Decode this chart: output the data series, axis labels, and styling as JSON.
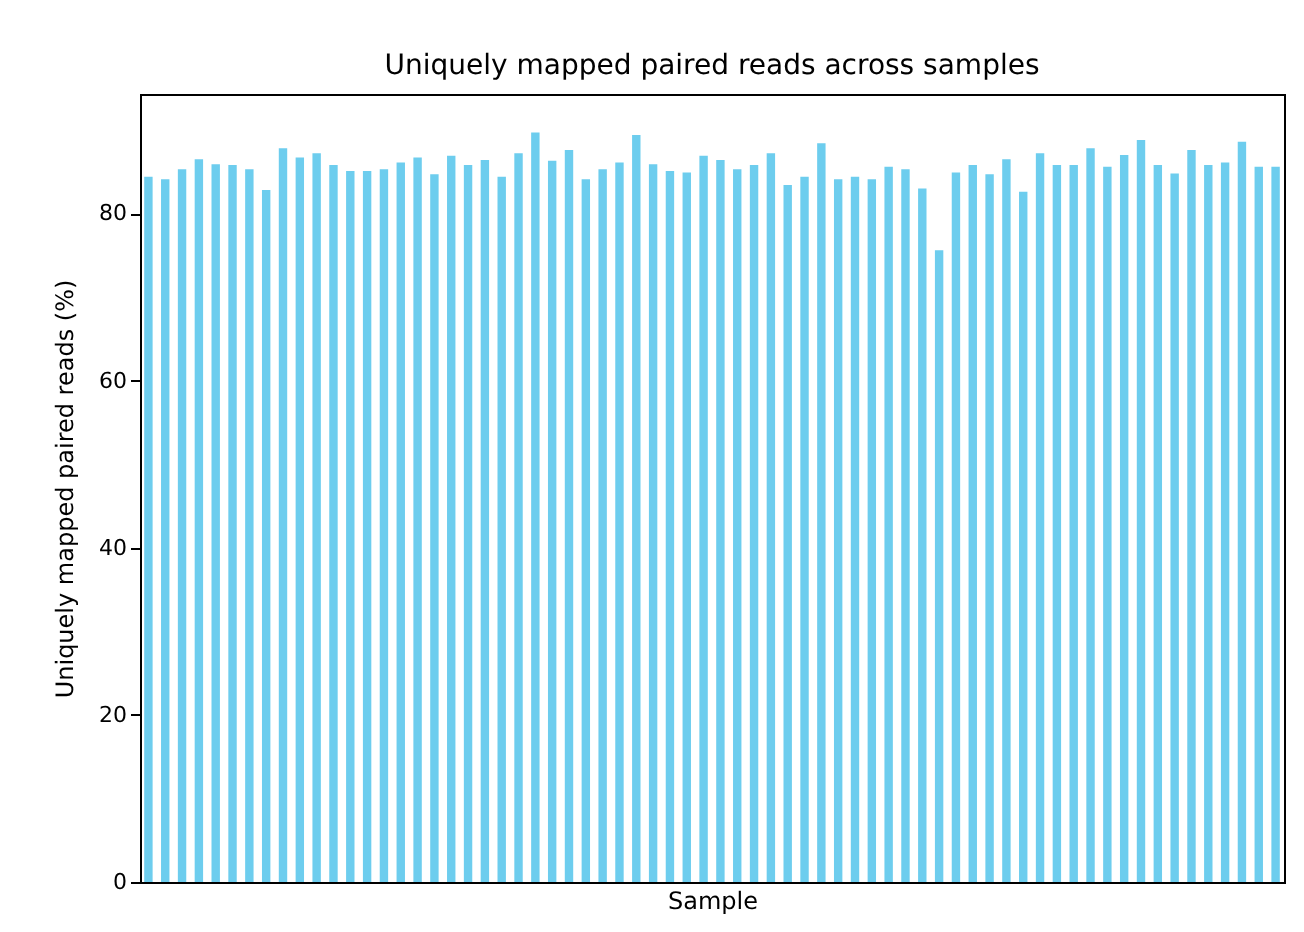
{
  "chart_data": {
    "type": "bar",
    "title": "Uniquely mapped paired reads across samples",
    "xlabel": "Sample",
    "ylabel": "Uniquely mapped paired reads (%)",
    "categories": [
      null,
      null,
      null,
      null,
      null,
      null,
      null,
      null,
      null,
      null,
      null,
      null,
      null,
      null,
      null,
      null,
      null,
      null,
      null,
      null,
      null,
      null,
      null,
      null,
      null,
      null,
      null,
      null,
      null,
      null,
      null,
      null,
      null,
      null,
      null,
      null,
      null,
      null,
      null,
      null,
      null,
      null,
      null,
      null,
      null,
      null,
      null,
      null,
      null,
      null,
      null,
      null,
      null,
      null,
      null,
      null,
      null,
      null,
      null,
      null,
      null,
      null,
      null,
      null,
      null,
      null,
      null,
      null
    ],
    "values": [
      84.4,
      84.1,
      85.3,
      86.5,
      85.9,
      85.8,
      85.3,
      82.8,
      87.8,
      86.7,
      87.2,
      85.8,
      85.1,
      85.1,
      85.3,
      86.1,
      86.7,
      84.7,
      86.9,
      85.8,
      86.4,
      84.4,
      87.2,
      89.7,
      86.3,
      87.6,
      84.1,
      85.3,
      86.1,
      89.4,
      85.9,
      85.1,
      84.9,
      86.9,
      86.4,
      85.3,
      85.8,
      87.2,
      83.4,
      84.4,
      88.4,
      84.1,
      84.4,
      84.1,
      85.6,
      85.3,
      83.0,
      75.6,
      84.9,
      85.8,
      84.7,
      86.5,
      82.6,
      87.2,
      85.8,
      85.8,
      87.8,
      85.6,
      87.0,
      88.8,
      85.8,
      84.8,
      87.6,
      85.8,
      86.1,
      88.6,
      85.6,
      85.6
    ],
    "color": "#6dcdee",
    "ylim": [
      0,
      94.3
    ],
    "yticks": [
      0,
      20,
      40,
      60,
      80
    ],
    "grid": false
  }
}
